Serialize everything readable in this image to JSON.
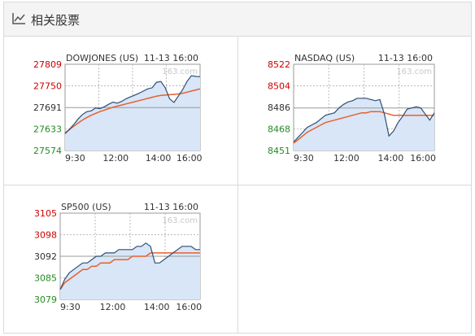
{
  "header": {
    "title": "相关股票",
    "icon": "line-chart-icon"
  },
  "colors": {
    "up": "#cc0000",
    "down": "#228b22",
    "price_line": "#2f4f73",
    "avg_line": "#e8602c",
    "fill": "#d8e6f7",
    "grid": "#b9b9b9",
    "ref_line": "#999999"
  },
  "chart_data": [
    {
      "type": "line",
      "name": "DOWJONES (US)",
      "datetime": "11-13 16:00",
      "watermark": "163.com",
      "y_ticks": [
        "27809",
        "27750",
        "27691",
        "27633",
        "27574"
      ],
      "x_ticks": [
        "9:30",
        "12:00",
        "14:00",
        "16:00"
      ],
      "ylim": [
        27574,
        27809
      ],
      "prev_close": 27691,
      "price": [
        27620,
        27632,
        27645,
        27660,
        27672,
        27680,
        27682,
        27690,
        27688,
        27693,
        27700,
        27706,
        27703,
        27708,
        27715,
        27720,
        27725,
        27730,
        27736,
        27742,
        27745,
        27760,
        27762,
        27745,
        27715,
        27705,
        27722,
        27740,
        27762,
        27778,
        27776,
        27775
      ],
      "avg": [
        27622,
        27631,
        27640,
        27649,
        27657,
        27664,
        27670,
        27675,
        27680,
        27684,
        27688,
        27692,
        27695,
        27698,
        27701,
        27704,
        27707,
        27710,
        27713,
        27716,
        27719,
        27722,
        27724,
        27725,
        27726,
        27727,
        27728,
        27730,
        27733,
        27736,
        27739,
        27742
      ]
    },
    {
      "type": "line",
      "name": "NASDAQ (US)",
      "datetime": "11-13 16:00",
      "watermark": "163.com",
      "y_ticks": [
        "8522",
        "8504",
        "8486",
        "8468",
        "8451"
      ],
      "x_ticks": [
        "9:30",
        "12:00",
        "14:00",
        "16:00"
      ],
      "ylim": [
        8451,
        8522
      ],
      "prev_close": 8486,
      "price": [
        8458,
        8462,
        8466,
        8470,
        8472,
        8474,
        8477,
        8480,
        8481,
        8482,
        8486,
        8489,
        8491,
        8492,
        8494,
        8494,
        8494,
        8493,
        8492,
        8493,
        8481,
        8463,
        8467,
        8474,
        8479,
        8485,
        8486,
        8487,
        8486,
        8481,
        8476,
        8482
      ],
      "avg": [
        8457,
        8460,
        8463,
        8466,
        8468,
        8470,
        8472,
        8474,
        8475,
        8476,
        8477,
        8478,
        8479,
        8480,
        8481,
        8482,
        8482,
        8483,
        8483,
        8483,
        8482,
        8481,
        8480,
        8480,
        8480,
        8480,
        8480,
        8480,
        8480,
        8480,
        8480,
        8480
      ]
    },
    {
      "type": "line",
      "name": "SP500 (US)",
      "datetime": "11-13 16:00",
      "watermark": "163.com",
      "y_ticks": [
        "3105",
        "3098",
        "3092",
        "3085",
        "3079"
      ],
      "x_ticks": [
        "9:30",
        "12:00",
        "14:00",
        "16:00"
      ],
      "ylim": [
        3079,
        3105
      ],
      "prev_close": 3092,
      "price": [
        3082,
        3085,
        3087,
        3088,
        3089,
        3090,
        3090,
        3091,
        3092,
        3092,
        3093,
        3093,
        3093,
        3094,
        3094,
        3094,
        3094,
        3095,
        3095,
        3096,
        3095,
        3090,
        3090,
        3091,
        3092,
        3093,
        3094,
        3095,
        3095,
        3095,
        3094,
        3094
      ],
      "avg": [
        3082,
        3084,
        3085,
        3086,
        3087,
        3088,
        3088,
        3089,
        3089,
        3090,
        3090,
        3090,
        3091,
        3091,
        3091,
        3091,
        3092,
        3092,
        3092,
        3092,
        3093,
        3093,
        3093,
        3093,
        3093,
        3093,
        3093,
        3093,
        3093,
        3093,
        3093,
        3093
      ]
    }
  ]
}
